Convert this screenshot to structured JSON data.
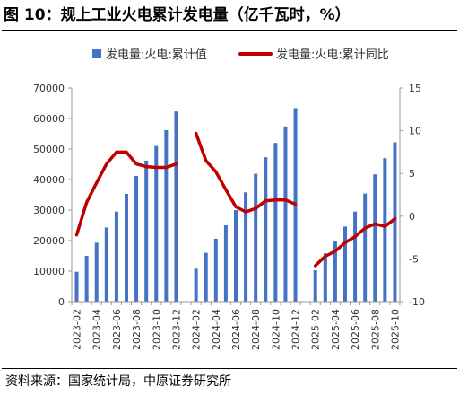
{
  "figure": {
    "title": "图 10：规上工业火电累计发电量（亿千瓦时，%）",
    "source": "资料来源：国家统计局，中原证券研究所"
  },
  "colors": {
    "bar": "#4472C4",
    "line": "#C00000",
    "axis": "#999999",
    "text": "#333333"
  },
  "chart_data": {
    "type": "bar",
    "categories": [
      "2023-02",
      "2023-03",
      "2023-04",
      "2023-05",
      "2023-06",
      "2023-07",
      "2023-08",
      "2023-09",
      "2023-10",
      "2023-11",
      "2023-12",
      "2024-01",
      "2024-02",
      "2024-03",
      "2024-04",
      "2024-05",
      "2024-06",
      "2024-07",
      "2024-08",
      "2024-09",
      "2024-10",
      "2024-11",
      "2024-12",
      "2025-01",
      "2025-02",
      "2025-03",
      "2025-04",
      "2025-05",
      "2025-06",
      "2025-07",
      "2025-08",
      "2025-09",
      "2025-10"
    ],
    "x_tick_labels": [
      "2023-02",
      "2023-04",
      "2023-06",
      "2023-08",
      "2023-10",
      "2023-12",
      "2024-02",
      "2024-04",
      "2024-06",
      "2024-08",
      "2024-10",
      "2024-12",
      "2025-02",
      "2025-04",
      "2025-06",
      "2025-08",
      "2025-10"
    ],
    "series": [
      {
        "name": "发电量:火电:累计值",
        "type": "bar",
        "axis": "left",
        "values": [
          9800,
          15000,
          19300,
          24300,
          29500,
          35300,
          41200,
          46200,
          51000,
          56200,
          62300,
          null,
          10800,
          16000,
          20600,
          25000,
          30000,
          35800,
          41900,
          47300,
          52000,
          57400,
          63400,
          null,
          10300,
          15800,
          19800,
          24600,
          29500,
          35400,
          41700,
          47000,
          52200
        ]
      },
      {
        "name": "发电量:火电:累计同比",
        "type": "line",
        "axis": "right",
        "values": [
          -2.2,
          1.6,
          3.9,
          6.1,
          7.5,
          7.5,
          6.1,
          5.8,
          5.7,
          5.7,
          6.1,
          null,
          9.7,
          6.5,
          5.2,
          3.1,
          1.1,
          0.5,
          0.9,
          1.8,
          1.9,
          1.9,
          1.4,
          null,
          -5.8,
          -4.7,
          -4.1,
          -3.1,
          -2.4,
          -1.4,
          -0.9,
          -1.2,
          -0.3
        ]
      }
    ],
    "y_left": {
      "min": 0,
      "max": 70000,
      "ticks": [
        0,
        10000,
        20000,
        30000,
        40000,
        50000,
        60000,
        70000
      ]
    },
    "y_right": {
      "min": -10,
      "max": 15,
      "ticks": [
        -10,
        -5,
        0,
        5,
        10,
        15
      ]
    },
    "legend": "top",
    "grid": false
  }
}
